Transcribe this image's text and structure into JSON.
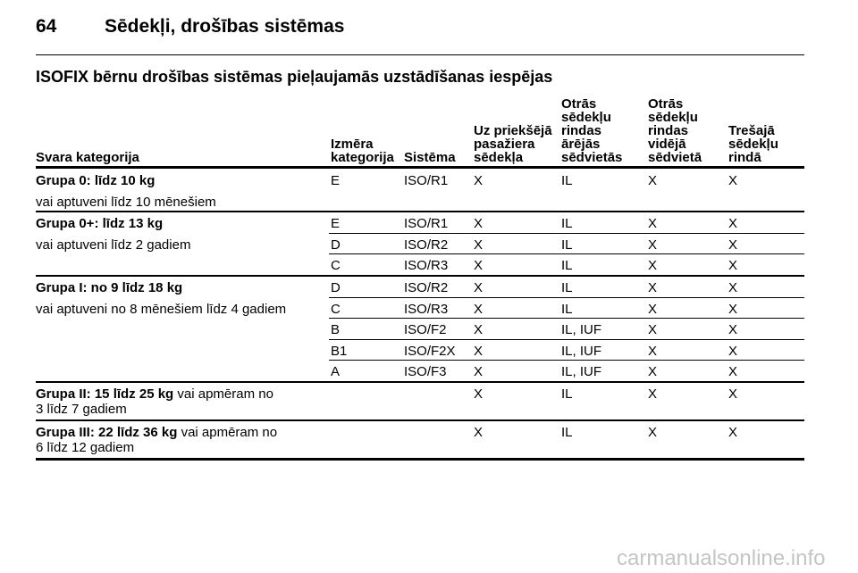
{
  "header": {
    "page_number": "64",
    "title": "Sēdekļi, drošības sistēmas"
  },
  "section_title": "ISOFIX bērnu drošības sistēmas pieļaujamās uzstādīšanas iespējas",
  "table": {
    "columns": [
      "Svara kategorija",
      "Izmēra\nkategorija",
      "Sistēma",
      "Uz priekšējā\npasažiera\nsēdekļa",
      "Otrās\nsēdekļu\nrindas\nārējās\nsēdvietās",
      "Otrās\nsēdekļu\nrindas\nvidējā\nsēdvietā",
      "Trešajā\nsēdekļu\nrindā"
    ],
    "groups": [
      {
        "title": "Grupa 0: līdz 10 kg",
        "description": "vai aptuveni līdz 10 mēnešiem",
        "rows": [
          [
            "E",
            "ISO/R1",
            "X",
            "IL",
            "X",
            "X"
          ]
        ]
      },
      {
        "title": "Grupa 0+: līdz 13 kg",
        "description": "vai aptuveni līdz 2 gadiem",
        "rows": [
          [
            "E",
            "ISO/R1",
            "X",
            "IL",
            "X",
            "X"
          ],
          [
            "D",
            "ISO/R2",
            "X",
            "IL",
            "X",
            "X"
          ],
          [
            "C",
            "ISO/R3",
            "X",
            "IL",
            "X",
            "X"
          ]
        ]
      },
      {
        "title": "Grupa I: no 9 līdz 18 kg",
        "description": "vai aptuveni no 8 mēnešiem līdz 4 gadiem",
        "rows": [
          [
            "D",
            "ISO/R2",
            "X",
            "IL",
            "X",
            "X"
          ],
          [
            "C",
            "ISO/R3",
            "X",
            "IL",
            "X",
            "X"
          ],
          [
            "B",
            "ISO/F2",
            "X",
            "IL, IUF",
            "X",
            "X"
          ],
          [
            "B1",
            "ISO/F2X",
            "X",
            "IL, IUF",
            "X",
            "X"
          ],
          [
            "A",
            "ISO/F3",
            "X",
            "IL, IUF",
            "X",
            "X"
          ]
        ]
      },
      {
        "title": "Grupa II: 15 līdz 25 kg",
        "description": "vai apmēram no\n3 līdz 7 gadiem",
        "rows": [
          [
            null,
            null,
            "X",
            "IL",
            "X",
            "X"
          ]
        ]
      },
      {
        "title": "Grupa III: 22 līdz 36 kg",
        "description": "vai apmēram no\n6 līdz 12 gadiem",
        "rows": [
          [
            null,
            null,
            "X",
            "IL",
            "X",
            "X"
          ]
        ]
      }
    ]
  },
  "watermark": "carmanualsonline.info"
}
